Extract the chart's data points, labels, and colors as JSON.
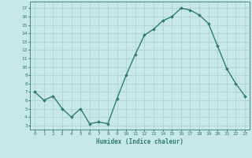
{
  "x": [
    0,
    1,
    2,
    3,
    4,
    5,
    6,
    7,
    8,
    9,
    10,
    11,
    12,
    13,
    14,
    15,
    16,
    17,
    18,
    19,
    20,
    21,
    22,
    23
  ],
  "y": [
    7.0,
    6.0,
    6.5,
    5.0,
    4.0,
    5.0,
    3.2,
    3.4,
    3.2,
    6.2,
    9.0,
    11.5,
    13.8,
    14.5,
    15.5,
    16.0,
    17.0,
    16.8,
    16.2,
    15.2,
    12.5,
    9.8,
    8.0,
    6.5
  ],
  "line_color": "#2e7d6e",
  "marker": "D",
  "marker_size": 1.8,
  "bg_color": "#c8e8e8",
  "grid_color": "#a8cece",
  "xlabel": "Humidex (Indice chaleur)",
  "ylabel_ticks": [
    3,
    4,
    5,
    6,
    7,
    8,
    9,
    10,
    11,
    12,
    13,
    14,
    15,
    16,
    17
  ],
  "ylim": [
    2.5,
    17.8
  ],
  "xlim": [
    -0.5,
    23.5
  ],
  "tick_color": "#2e7d6e",
  "font_color": "#2e7d6e",
  "line_width": 1.0
}
